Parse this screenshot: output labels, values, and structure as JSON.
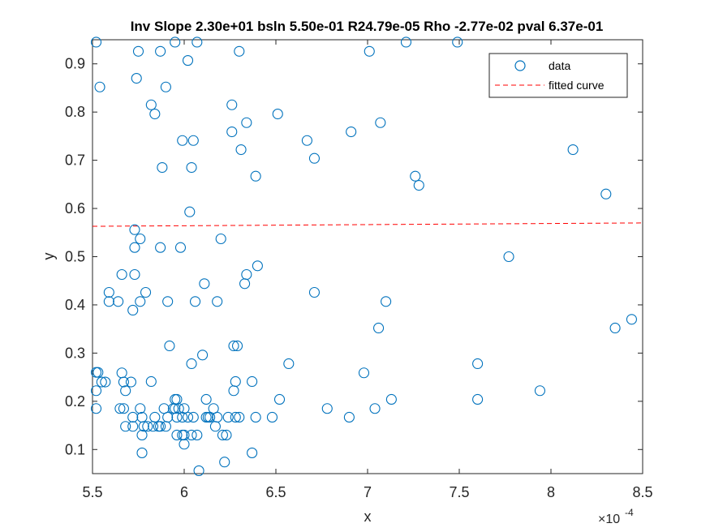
{
  "chart_data": {
    "type": "scatter",
    "title": "Inv Slope 2.30e+01 bsln 5.50e-01 R24.79e-05 Rho -2.77e-02 pval 6.37e-01",
    "xlabel": "x",
    "ylabel": "y",
    "x_multiplier": "×10",
    "x_multiplier_exp": "-4",
    "xlim": [
      5.5,
      8.5
    ],
    "ylim": [
      0.05,
      0.95
    ],
    "xticks": [
      5.5,
      6,
      6.5,
      7,
      7.5,
      8,
      8.5
    ],
    "xtick_labels": [
      "5.5",
      "6",
      "6.5",
      "7",
      "7.5",
      "8",
      "8.5"
    ],
    "yticks": [
      0.1,
      0.2,
      0.3,
      0.4,
      0.5,
      0.6,
      0.7,
      0.8,
      0.9
    ],
    "ytick_labels": [
      "0.1",
      "0.2",
      "0.3",
      "0.4",
      "0.5",
      "0.6",
      "0.7",
      "0.8",
      "0.9"
    ],
    "grid": false,
    "legend_position": "top-right",
    "colors": {
      "data": "#0072BD",
      "fit": "#FF0000",
      "axis": "#262626"
    },
    "series": [
      {
        "name": "data",
        "marker": "circle",
        "points": [
          [
            5.52,
            0.945
          ],
          [
            5.54,
            0.852
          ],
          [
            5.52,
            0.26
          ],
          [
            5.53,
            0.26
          ],
          [
            5.52,
            0.222
          ],
          [
            5.52,
            0.185
          ],
          [
            5.55,
            0.24
          ],
          [
            5.57,
            0.24
          ],
          [
            5.59,
            0.426
          ],
          [
            5.59,
            0.407
          ],
          [
            5.64,
            0.407
          ],
          [
            5.65,
            0.185
          ],
          [
            5.66,
            0.463
          ],
          [
            5.67,
            0.185
          ],
          [
            5.66,
            0.259
          ],
          [
            5.67,
            0.24
          ],
          [
            5.68,
            0.148
          ],
          [
            5.68,
            0.222
          ],
          [
            5.71,
            0.24
          ],
          [
            5.72,
            0.389
          ],
          [
            5.72,
            0.148
          ],
          [
            5.72,
            0.167
          ],
          [
            5.73,
            0.556
          ],
          [
            5.73,
            0.519
          ],
          [
            5.73,
            0.463
          ],
          [
            5.74,
            0.87
          ],
          [
            5.75,
            0.926
          ],
          [
            5.76,
            0.407
          ],
          [
            5.76,
            0.537
          ],
          [
            5.76,
            0.185
          ],
          [
            5.77,
            0.167
          ],
          [
            5.77,
            0.093
          ],
          [
            5.77,
            0.13
          ],
          [
            5.78,
            0.148
          ],
          [
            5.79,
            0.426
          ],
          [
            5.8,
            0.148
          ],
          [
            5.82,
            0.241
          ],
          [
            5.82,
            0.815
          ],
          [
            5.83,
            0.148
          ],
          [
            5.84,
            0.796
          ],
          [
            5.84,
            0.167
          ],
          [
            5.86,
            0.148
          ],
          [
            5.87,
            0.926
          ],
          [
            5.87,
            0.519
          ],
          [
            5.87,
            0.148
          ],
          [
            5.88,
            0.685
          ],
          [
            5.89,
            0.185
          ],
          [
            5.9,
            0.148
          ],
          [
            5.9,
            0.852
          ],
          [
            5.91,
            0.407
          ],
          [
            5.91,
            0.167
          ],
          [
            5.92,
            0.315
          ],
          [
            5.94,
            0.185
          ],
          [
            5.95,
            0.204
          ],
          [
            5.95,
            0.185
          ],
          [
            5.95,
            0.945
          ],
          [
            5.96,
            0.204
          ],
          [
            5.96,
            0.13
          ],
          [
            5.96,
            0.167
          ],
          [
            5.97,
            0.185
          ],
          [
            5.98,
            0.519
          ],
          [
            5.99,
            0.13
          ],
          [
            5.99,
            0.167
          ],
          [
            5.99,
            0.741
          ],
          [
            6.0,
            0.111
          ],
          [
            6.0,
            0.185
          ],
          [
            6.0,
            0.13
          ],
          [
            6.02,
            0.167
          ],
          [
            6.02,
            0.907
          ],
          [
            6.03,
            0.593
          ],
          [
            6.04,
            0.13
          ],
          [
            6.04,
            0.685
          ],
          [
            6.04,
            0.278
          ],
          [
            6.05,
            0.741
          ],
          [
            6.05,
            0.167
          ],
          [
            6.06,
            0.407
          ],
          [
            6.07,
            0.13
          ],
          [
            6.07,
            0.945
          ],
          [
            6.08,
            0.056
          ],
          [
            6.1,
            0.296
          ],
          [
            6.11,
            0.444
          ],
          [
            6.12,
            0.204
          ],
          [
            6.12,
            0.167
          ],
          [
            6.13,
            0.167
          ],
          [
            6.14,
            0.167
          ],
          [
            6.16,
            0.185
          ],
          [
            6.17,
            0.148
          ],
          [
            6.18,
            0.407
          ],
          [
            6.18,
            0.167
          ],
          [
            6.2,
            0.537
          ],
          [
            6.21,
            0.13
          ],
          [
            6.22,
            0.074
          ],
          [
            6.23,
            0.13
          ],
          [
            6.24,
            0.167
          ],
          [
            6.26,
            0.815
          ],
          [
            6.26,
            0.759
          ],
          [
            6.27,
            0.315
          ],
          [
            6.27,
            0.222
          ],
          [
            6.28,
            0.241
          ],
          [
            6.28,
            0.167
          ],
          [
            6.29,
            0.315
          ],
          [
            6.3,
            0.926
          ],
          [
            6.3,
            0.167
          ],
          [
            6.31,
            0.722
          ],
          [
            6.33,
            0.444
          ],
          [
            6.34,
            0.463
          ],
          [
            6.34,
            0.778
          ],
          [
            6.37,
            0.241
          ],
          [
            6.37,
            0.093
          ],
          [
            6.39,
            0.167
          ],
          [
            6.39,
            0.667
          ],
          [
            6.4,
            0.481
          ],
          [
            6.48,
            0.167
          ],
          [
            6.51,
            0.796
          ],
          [
            6.52,
            0.204
          ],
          [
            6.57,
            0.278
          ],
          [
            6.67,
            0.741
          ],
          [
            6.71,
            0.704
          ],
          [
            6.71,
            0.426
          ],
          [
            6.78,
            0.185
          ],
          [
            6.9,
            0.167
          ],
          [
            6.91,
            0.759
          ],
          [
            6.98,
            0.259
          ],
          [
            7.01,
            0.926
          ],
          [
            7.04,
            0.185
          ],
          [
            7.06,
            0.352
          ],
          [
            7.07,
            0.778
          ],
          [
            7.1,
            0.407
          ],
          [
            7.13,
            0.204
          ],
          [
            7.21,
            0.945
          ],
          [
            7.26,
            0.667
          ],
          [
            7.28,
            0.648
          ],
          [
            7.49,
            0.945
          ],
          [
            7.6,
            0.278
          ],
          [
            7.6,
            0.204
          ],
          [
            7.77,
            0.5
          ],
          [
            7.94,
            0.222
          ],
          [
            8.12,
            0.722
          ],
          [
            8.3,
            0.63
          ],
          [
            8.35,
            0.352
          ],
          [
            8.44,
            0.37
          ]
        ]
      },
      {
        "name": "fitted curve",
        "line_style": "dashed",
        "points": [
          [
            5.5,
            0.563
          ],
          [
            8.5,
            0.57
          ]
        ]
      }
    ]
  }
}
